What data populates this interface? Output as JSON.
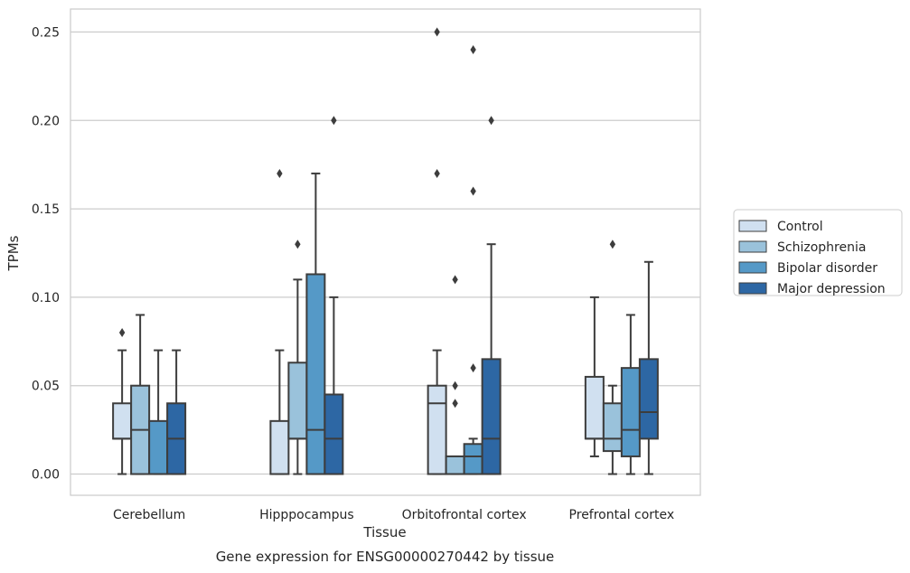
{
  "chart_data": {
    "type": "box",
    "title": "",
    "caption": "Gene expression for ENSG00000270442 by tissue",
    "xlabel": "Tissue",
    "ylabel": "TPMs",
    "ylim": [
      -0.012,
      0.263
    ],
    "yticks": [
      0.0,
      0.05,
      0.1,
      0.15,
      0.2,
      0.25
    ],
    "ytick_labels": [
      "0.00",
      "0.05",
      "0.10",
      "0.15",
      "0.20",
      "0.25"
    ],
    "grid": true,
    "legend_position": "center-right",
    "categories": [
      "Cerebellum",
      "Hipppocampus",
      "Orbitofrontal cortex",
      "Prefrontal cortex"
    ],
    "series": [
      {
        "name": "Control",
        "color": "#d0e0f0",
        "boxes": [
          {
            "whisker_low": 0.0,
            "q1": 0.02,
            "median": 0.02,
            "q3": 0.04,
            "whisker_high": 0.07,
            "outliers": [
              0.08
            ]
          },
          {
            "whisker_low": 0.0,
            "q1": 0.0,
            "median": 0.0,
            "q3": 0.03,
            "whisker_high": 0.07,
            "outliers": [
              0.17
            ]
          },
          {
            "whisker_low": 0.0,
            "q1": 0.0,
            "median": 0.04,
            "q3": 0.05,
            "whisker_high": 0.07,
            "outliers": [
              0.17,
              0.25
            ]
          },
          {
            "whisker_low": 0.01,
            "q1": 0.02,
            "median": 0.02,
            "q3": 0.055,
            "whisker_high": 0.1,
            "outliers": []
          }
        ]
      },
      {
        "name": "Schizophrenia",
        "color": "#9ac2db",
        "boxes": [
          {
            "whisker_low": 0.0,
            "q1": 0.0,
            "median": 0.025,
            "q3": 0.05,
            "whisker_high": 0.09,
            "outliers": []
          },
          {
            "whisker_low": 0.0,
            "q1": 0.02,
            "median": 0.02,
            "q3": 0.063,
            "whisker_high": 0.11,
            "outliers": [
              0.13
            ]
          },
          {
            "whisker_low": 0.0,
            "q1": 0.0,
            "median": 0.0,
            "q3": 0.01,
            "whisker_high": 0.01,
            "outliers": [
              0.04,
              0.05,
              0.11
            ]
          },
          {
            "whisker_low": 0.0,
            "q1": 0.013,
            "median": 0.02,
            "q3": 0.04,
            "whisker_high": 0.05,
            "outliers": [
              0.13
            ]
          }
        ]
      },
      {
        "name": "Bipolar disorder",
        "color": "#5599c7",
        "boxes": [
          {
            "whisker_low": 0.0,
            "q1": 0.0,
            "median": 0.0,
            "q3": 0.03,
            "whisker_high": 0.07,
            "outliers": []
          },
          {
            "whisker_low": 0.0,
            "q1": 0.0,
            "median": 0.025,
            "q3": 0.113,
            "whisker_high": 0.17,
            "outliers": []
          },
          {
            "whisker_low": 0.0,
            "q1": 0.0,
            "median": 0.01,
            "q3": 0.017,
            "whisker_high": 0.02,
            "outliers": [
              0.06,
              0.16,
              0.24
            ]
          },
          {
            "whisker_low": 0.0,
            "q1": 0.01,
            "median": 0.025,
            "q3": 0.06,
            "whisker_high": 0.09,
            "outliers": []
          }
        ]
      },
      {
        "name": "Major depression",
        "color": "#2d67a4",
        "boxes": [
          {
            "whisker_low": 0.0,
            "q1": 0.0,
            "median": 0.02,
            "q3": 0.04,
            "whisker_high": 0.07,
            "outliers": []
          },
          {
            "whisker_low": 0.0,
            "q1": 0.0,
            "median": 0.02,
            "q3": 0.045,
            "whisker_high": 0.1,
            "outliers": [
              0.2
            ]
          },
          {
            "whisker_low": 0.0,
            "q1": 0.0,
            "median": 0.02,
            "q3": 0.065,
            "whisker_high": 0.13,
            "outliers": [
              0.2
            ]
          },
          {
            "whisker_low": 0.0,
            "q1": 0.02,
            "median": 0.035,
            "q3": 0.065,
            "whisker_high": 0.12,
            "outliers": []
          }
        ]
      }
    ]
  }
}
